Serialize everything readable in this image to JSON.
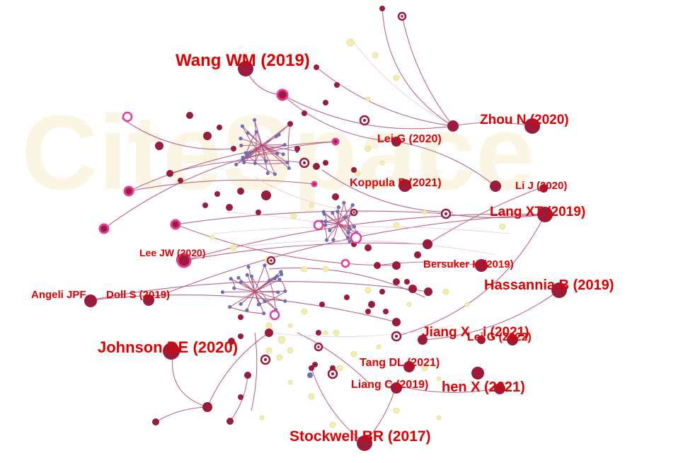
{
  "watermark": "CiteSpace",
  "colors": {
    "label": "#e00000",
    "node_dark": "#9b1b3c",
    "node_ring": "#e83a9a",
    "node_blue": "#6d6fb3",
    "node_yellow": "#f2eeb0",
    "edge": "#b04a78",
    "edge_light": "#e8b9cc"
  },
  "labels": [
    {
      "id": "wang",
      "text": "Wang WM (2019)"
    },
    {
      "id": "zhou",
      "text": "Zhou N (2020)"
    },
    {
      "id": "leig2020",
      "text": "Lei G (2020)"
    },
    {
      "id": "koppula",
      "text": "Koppula P (2021)"
    },
    {
      "id": "lij",
      "text": "Li J (2020)"
    },
    {
      "id": "langxt",
      "text": "Lang XT (2019)"
    },
    {
      "id": "leejw",
      "text": "Lee JW (2020)"
    },
    {
      "id": "bersuker",
      "text": "Bersuker K (2019)"
    },
    {
      "id": "hassannia",
      "text": "Hassannia B (2019)"
    },
    {
      "id": "angeli",
      "text": "Angeli JPF"
    },
    {
      "id": "doll",
      "text": "Doll S (2019)"
    },
    {
      "id": "jiangx",
      "text": "Jiang X"
    },
    {
      "id": "jiangx_rest",
      "text": "i (2021)"
    },
    {
      "id": "leig2022",
      "text": "Lei G (2022)"
    },
    {
      "id": "johnson",
      "text": "Johnson DE (2020)"
    },
    {
      "id": "tangdl",
      "text": "Tang DL (2021)"
    },
    {
      "id": "liangc",
      "text": "Liang C (2019)"
    },
    {
      "id": "chenx",
      "text": "hen X (2021)"
    },
    {
      "id": "stockwell",
      "text": "Stockwell BR (2017)"
    }
  ]
}
